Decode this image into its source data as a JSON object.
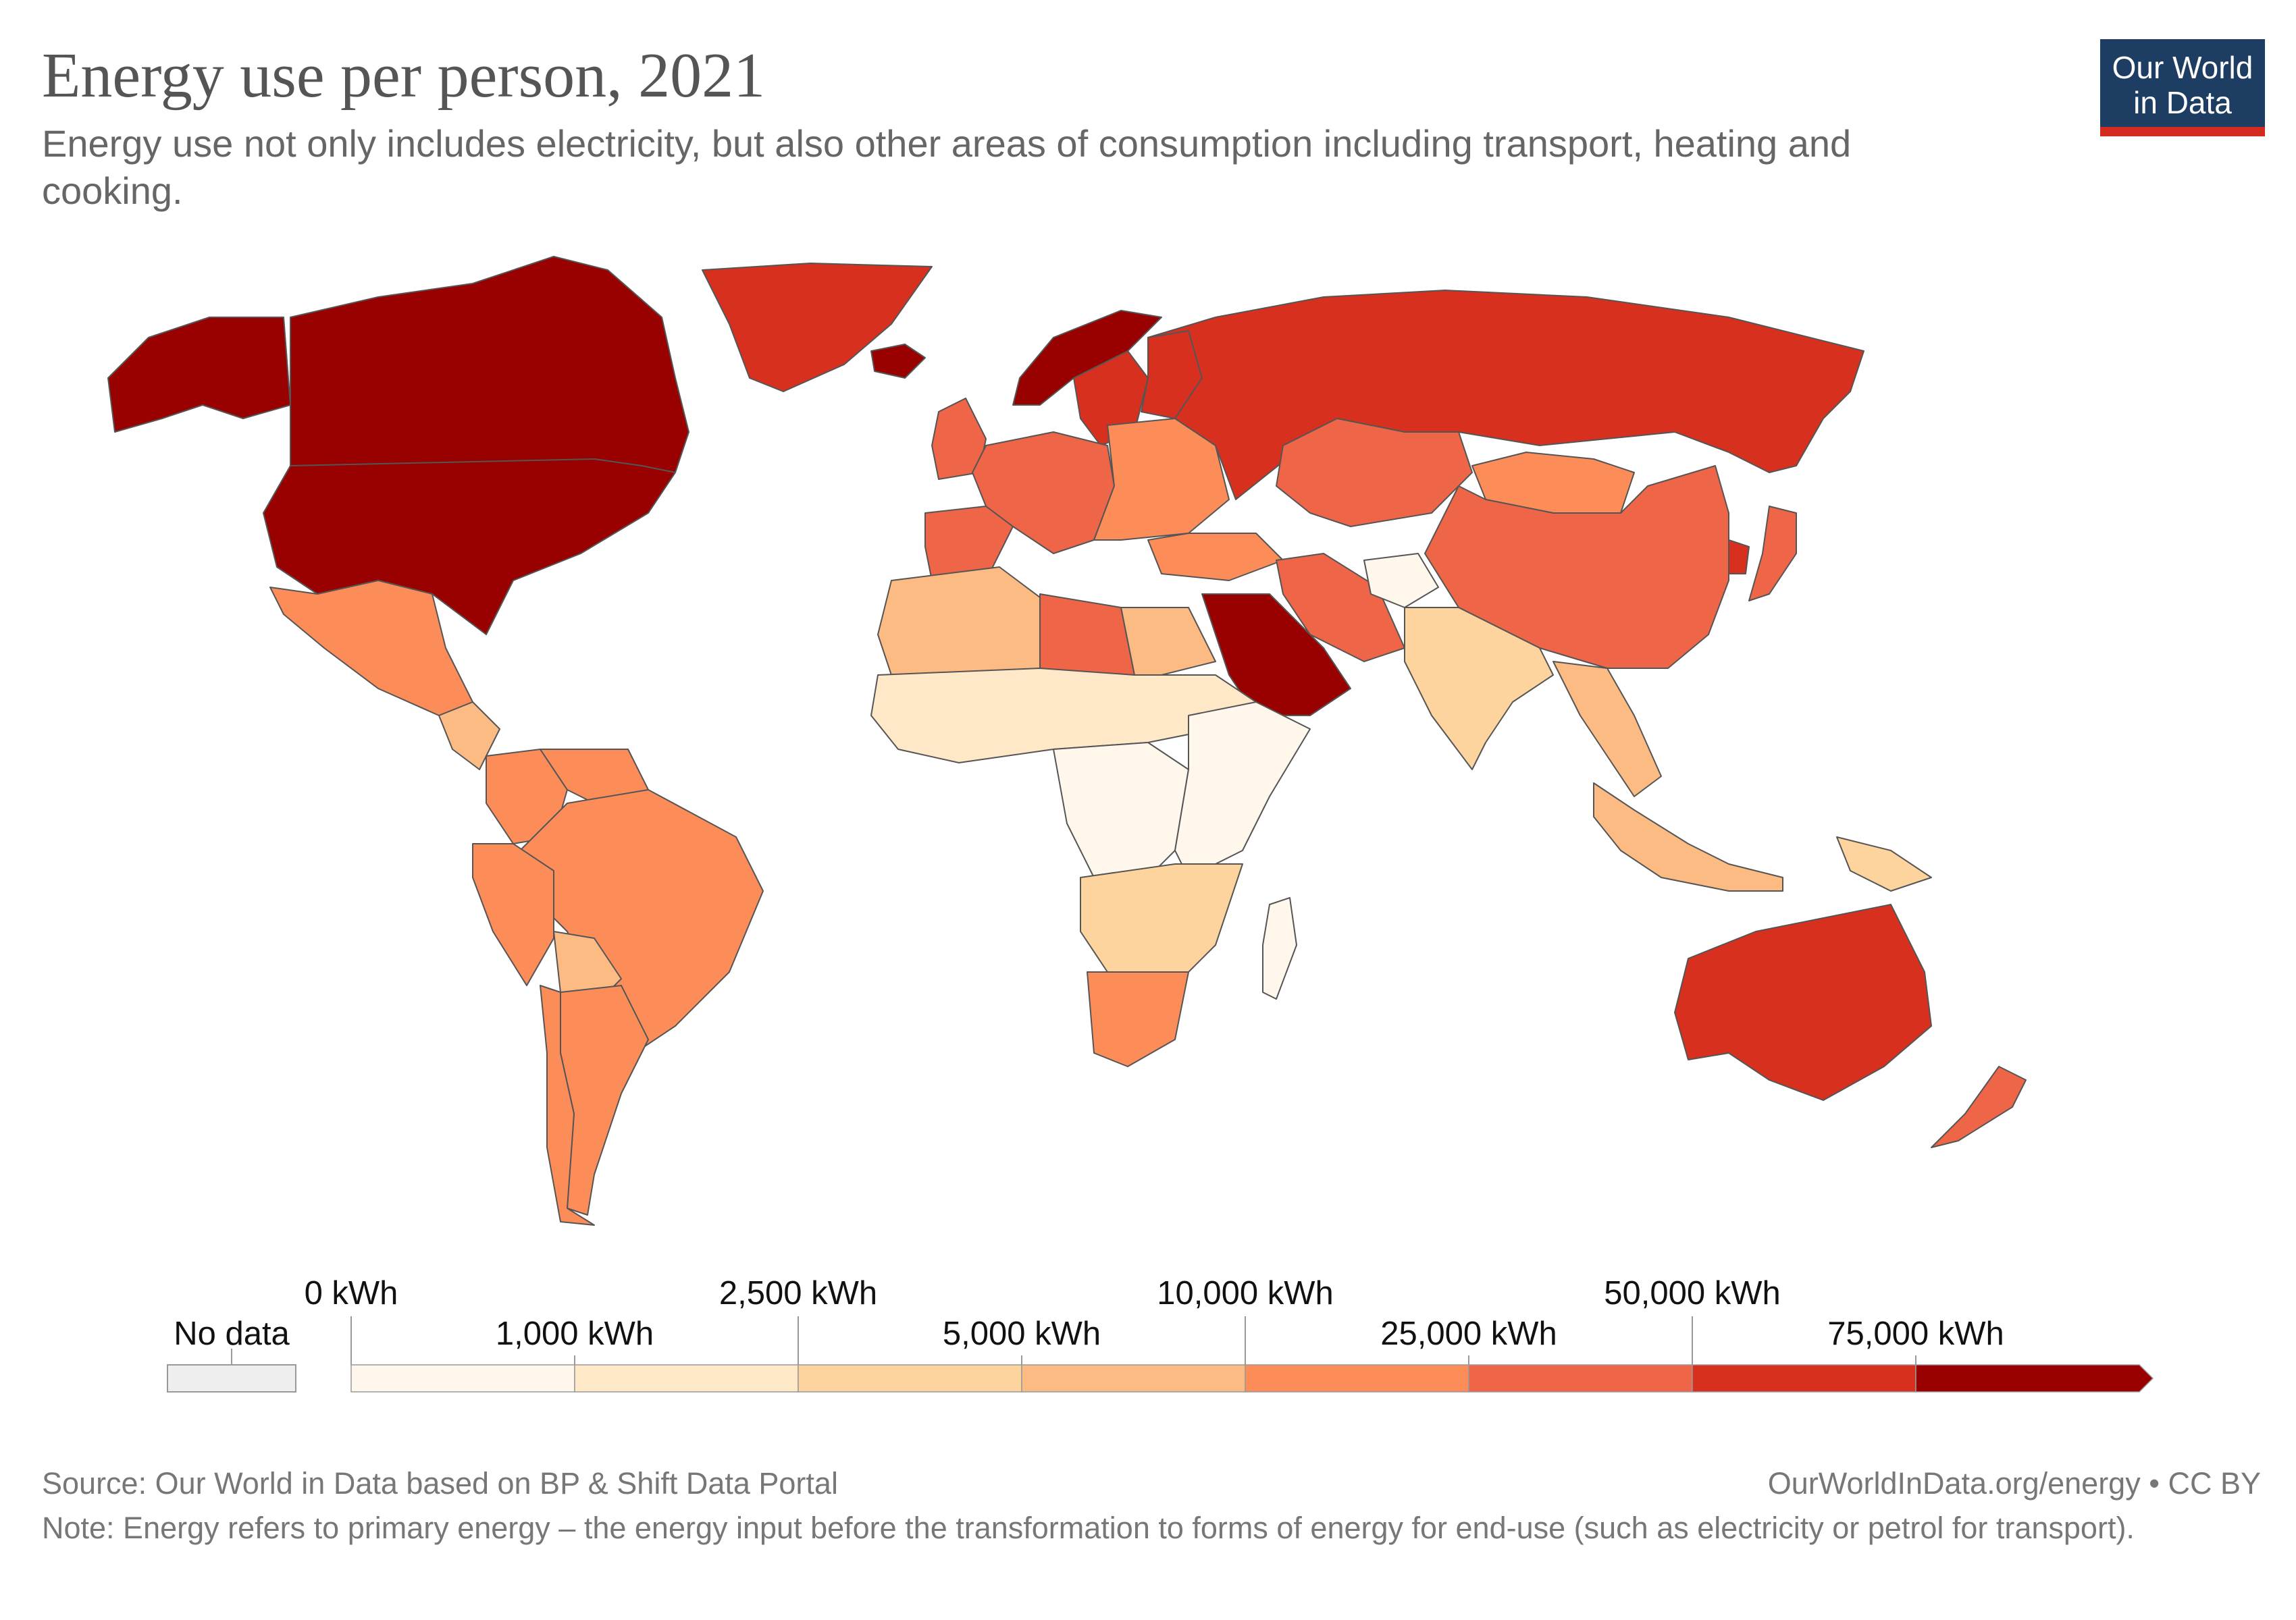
{
  "header": {
    "title": "Energy use per person, 2021",
    "subtitle": "Energy use not only includes electricity, but also other areas of consumption including transport, heating and cooking."
  },
  "logo": {
    "line1": "Our World",
    "line2": "in Data",
    "bg_color": "#1d3d63",
    "bar_color": "#d42b21"
  },
  "legend": {
    "no_data_label": "No data",
    "no_data_color": "#eeeeee",
    "bins": [
      {
        "label": "0 kWh",
        "color": "#fff7ec"
      },
      {
        "label": "1,000 kWh",
        "color": "#fee8c8"
      },
      {
        "label": "2,500 kWh",
        "color": "#fdd49e"
      },
      {
        "label": "5,000 kWh",
        "color": "#fdbb84"
      },
      {
        "label": "10,000 kWh",
        "color": "#fc8d59"
      },
      {
        "label": "25,000 kWh",
        "color": "#ef6548"
      },
      {
        "label": "50,000 kWh",
        "color": "#d7301f"
      },
      {
        "label": "75,000 kWh",
        "color": "#990000"
      }
    ]
  },
  "regions": [
    {
      "name": "Canada",
      "color": "#990000"
    },
    {
      "name": "United States",
      "color": "#990000"
    },
    {
      "name": "Alaska",
      "color": "#990000"
    },
    {
      "name": "Greenland",
      "color": "#d7301f"
    },
    {
      "name": "Iceland",
      "color": "#990000"
    },
    {
      "name": "Mexico",
      "color": "#fc8d59"
    },
    {
      "name": "Central America",
      "color": "#fdbb84"
    },
    {
      "name": "Colombia",
      "color": "#fc8d59"
    },
    {
      "name": "Venezuela",
      "color": "#fc8d59"
    },
    {
      "name": "Brazil",
      "color": "#fc8d59"
    },
    {
      "name": "Peru",
      "color": "#fc8d59"
    },
    {
      "name": "Bolivia",
      "color": "#fdbb84"
    },
    {
      "name": "Argentina",
      "color": "#fc8d59"
    },
    {
      "name": "Chile",
      "color": "#fc8d59"
    },
    {
      "name": "Norway",
      "color": "#990000"
    },
    {
      "name": "Sweden",
      "color": "#d7301f"
    },
    {
      "name": "Finland",
      "color": "#d7301f"
    },
    {
      "name": "United Kingdom",
      "color": "#ef6548"
    },
    {
      "name": "Western Europe",
      "color": "#ef6548"
    },
    {
      "name": "Iberia",
      "color": "#ef6548"
    },
    {
      "name": "Eastern Europe",
      "color": "#fc8d59"
    },
    {
      "name": "Russia",
      "color": "#d7301f"
    },
    {
      "name": "Kazakhstan",
      "color": "#ef6548"
    },
    {
      "name": "Turkey",
      "color": "#fc8d59"
    },
    {
      "name": "Iran",
      "color": "#ef6548"
    },
    {
      "name": "Saudi Arabia",
      "color": "#990000"
    },
    {
      "name": "Afghanistan",
      "color": "#fff7ec"
    },
    {
      "name": "Mongolia",
      "color": "#fc8d59"
    },
    {
      "name": "China",
      "color": "#ef6548"
    },
    {
      "name": "India",
      "color": "#fdd49e"
    },
    {
      "name": "Southeast Asia",
      "color": "#fdbb84"
    },
    {
      "name": "Indonesia",
      "color": "#fdbb84"
    },
    {
      "name": "Japan",
      "color": "#ef6548"
    },
    {
      "name": "South Korea",
      "color": "#d7301f"
    },
    {
      "name": "Australia",
      "color": "#d7301f"
    },
    {
      "name": "New Zealand",
      "color": "#ef6548"
    },
    {
      "name": "Papua New Guinea",
      "color": "#fdd49e"
    },
    {
      "name": "North Africa",
      "color": "#fdbb84"
    },
    {
      "name": "Libya",
      "color": "#ef6548"
    },
    {
      "name": "Egypt",
      "color": "#fdbb84"
    },
    {
      "name": "Sahel",
      "color": "#fee8c8"
    },
    {
      "name": "Central Africa",
      "color": "#fff7ec"
    },
    {
      "name": "East Africa",
      "color": "#fff7ec"
    },
    {
      "name": "Southern Africa",
      "color": "#fdd49e"
    },
    {
      "name": "South Africa",
      "color": "#fc8d59"
    },
    {
      "name": "Madagascar",
      "color": "#fff7ec"
    }
  ],
  "footer": {
    "source": "Source: Our World in Data based on BP & Shift Data Portal",
    "url": "OurWorldInData.org/energy • CC BY",
    "note": "Note: Energy refers to primary energy – the energy input before the transformation to forms of energy for end-use (such as electricity or petrol for transport)."
  }
}
